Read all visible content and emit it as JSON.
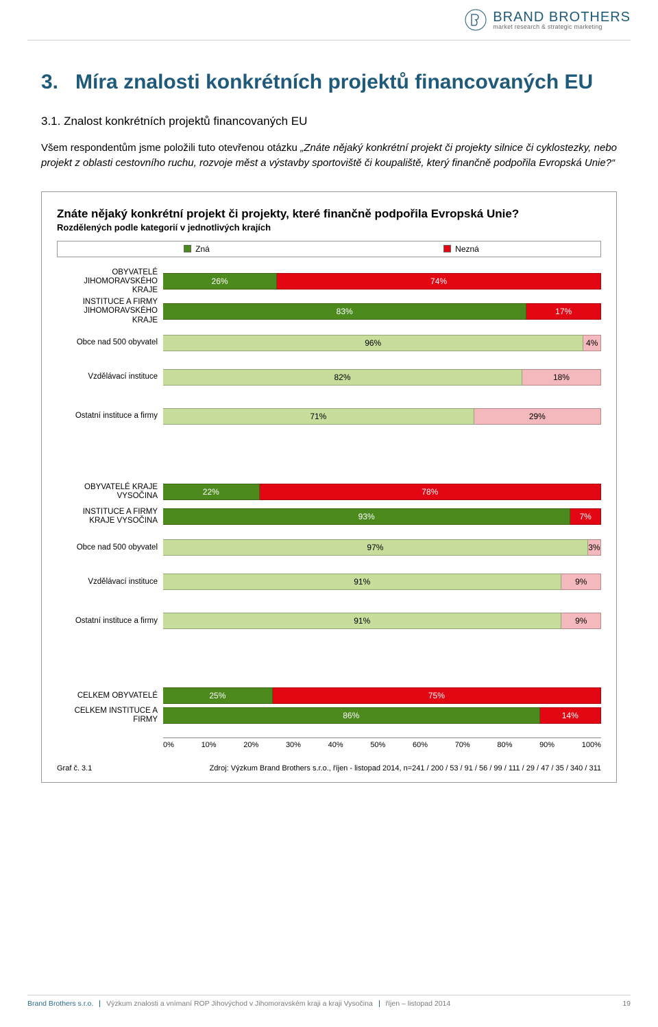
{
  "logo": {
    "main": "BRAND BROTHERS",
    "sub": "market research & strategic marketing",
    "color": "#1f5a7a"
  },
  "heading_num": "3.",
  "heading_rest": "Míra znalosti konkrétních projektů financovaných EU",
  "sub_heading": "3.1.   Znalost konkrétních projektů financovaných EU",
  "para_lead": "Všem respondentům jsme položili tuto otevřenou otázku ",
  "para_italic": "„Znáte nějaký konkrétní projekt či projekty silnice či cyklostezky, nebo projekt z oblasti cestovního ruchu, rozvoje měst a výstavby sportoviště či koupaliště, který finančně podpořila Evropská Unie?“",
  "chart": {
    "title": "Znáte nějaký konkrétní projekt či projekty, které finančně podpořila Evropská Unie?",
    "subtitle": "Rozdělených podle kategorií v jednotlivých krajích",
    "legend": {
      "zna": "Zná",
      "nezna": "Nezná"
    },
    "colors": {
      "zna_strong": "#4c8a1e",
      "nezna_strong": "#e30613",
      "zna_light": "#c6dd9c",
      "nezna_light": "#f4b9bd",
      "border": "#999999"
    },
    "groups": [
      {
        "rows": [
          {
            "label": "OBYVATELÉ JIHOMORAVSKÉHO KRAJE",
            "zna": 26,
            "nezna": 74,
            "strong": true
          },
          {
            "label": "INSTITUCE  A FIRMY JIHOMORAVSKÉHO KRAJE",
            "zna": 83,
            "nezna": 17,
            "strong": true
          },
          {
            "label": "Obce nad 500 obyvatel",
            "zna": 96,
            "nezna": 4,
            "strong": false
          },
          {
            "label": "Vzdělávací instituce",
            "zna": 82,
            "nezna": 18,
            "strong": false
          },
          {
            "label": "Ostatní instituce a firmy",
            "zna": 71,
            "nezna": 29,
            "strong": false
          }
        ]
      },
      {
        "rows": [
          {
            "label": "OBYVATELÉ KRAJE VYSOČINA",
            "zna": 22,
            "nezna": 78,
            "strong": true
          },
          {
            "label": "INSTITUCE  A FIRMY KRAJE VYSOČINA",
            "zna": 93,
            "nezna": 7,
            "strong": true
          },
          {
            "label": "Obce nad 500 obyvatel",
            "zna": 97,
            "nezna": 3,
            "strong": false
          },
          {
            "label": "Vzdělávací instituce",
            "zna": 91,
            "nezna": 9,
            "strong": false
          },
          {
            "label": "Ostatní instituce a firmy",
            "zna": 91,
            "nezna": 9,
            "strong": false
          }
        ]
      },
      {
        "rows": [
          {
            "label": "CELKEM OBYVATELÉ",
            "zna": 25,
            "nezna": 75,
            "strong": true
          },
          {
            "label": "CELKEM INSTITUCE A FIRMY",
            "zna": 86,
            "nezna": 14,
            "strong": true
          }
        ]
      }
    ],
    "axis_ticks": [
      "0%",
      "10%",
      "20%",
      "30%",
      "40%",
      "50%",
      "60%",
      "70%",
      "80%",
      "90%",
      "100%"
    ],
    "graf_label": "Graf č. 3.1",
    "source": "Zdroj: Výzkum Brand Brothers s.r.o., říjen - listopad 2014, n=241 / 200 / 53 / 91 / 56 / 99 / 111 / 29 / 47 / 35 / 340 / 311"
  },
  "footer": {
    "brand": "Brand Brothers s.r.o.",
    "text": "Výzkum znalosti a vnímaní ROP Jihovýchod v Jihomoravském kraji a kraji Vysočina",
    "period": "říjen – listopad 2014",
    "page": "19"
  }
}
